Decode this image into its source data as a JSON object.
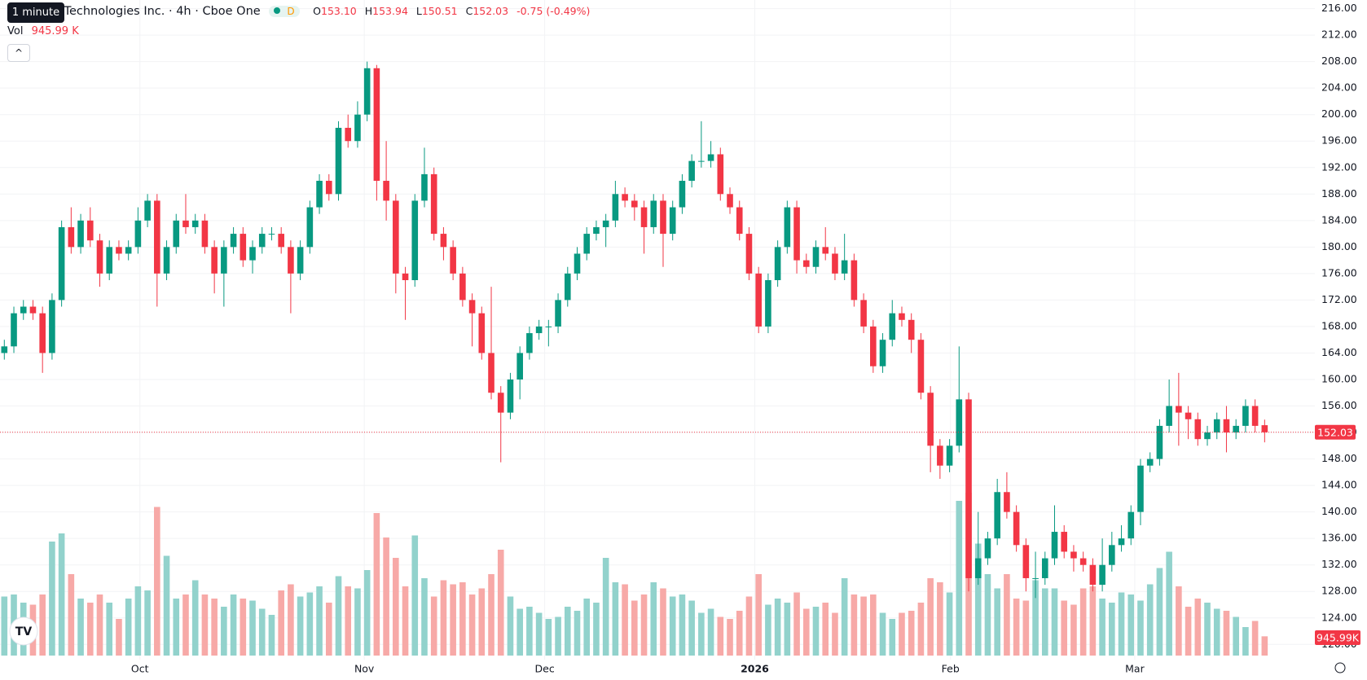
{
  "header": {
    "tooltip": "1 minute",
    "title": "r Technologies Inc. · 4h · Cboe One",
    "badge": "D",
    "o_label": "O",
    "open": "153.10",
    "h_label": "H",
    "high": "153.94",
    "l_label": "L",
    "low": "150.51",
    "c_label": "C",
    "close": "152.03",
    "change": "-0.75 (-0.49%)",
    "vol_label": "Vol",
    "volume": "945.99 K"
  },
  "chart_data": {
    "type": "candlestick",
    "open": [
      164,
      165,
      170,
      171,
      170,
      164,
      172,
      183,
      180,
      184,
      181,
      176,
      180,
      179,
      180,
      184,
      187,
      176,
      180,
      184,
      183,
      184,
      180,
      176,
      180,
      182,
      178,
      180,
      182,
      182,
      180,
      176,
      180,
      186,
      190,
      188,
      198,
      196,
      200,
      207,
      190,
      187,
      176,
      175,
      187,
      191,
      182,
      180,
      176,
      172,
      170,
      164,
      158,
      155,
      160,
      164,
      167,
      168,
      168,
      172,
      176,
      179,
      182,
      183,
      184,
      188,
      187,
      186,
      183,
      187,
      182,
      186,
      190,
      193,
      193,
      194,
      188,
      186,
      182,
      176,
      168,
      175,
      180,
      186,
      178,
      177,
      180,
      179,
      176,
      178,
      172,
      168,
      162,
      166,
      170,
      169,
      166,
      158,
      150,
      147,
      150,
      157,
      130,
      133,
      136,
      143,
      140,
      135,
      130,
      130,
      133,
      137,
      134,
      133,
      132,
      129,
      132,
      135,
      136,
      140,
      147,
      148,
      153,
      156,
      155,
      154,
      151,
      152,
      154,
      152,
      153,
      156,
      153.1
    ],
    "high": [
      166,
      171,
      172,
      172,
      171,
      173,
      184,
      186,
      185,
      186,
      182,
      181,
      181,
      181,
      186,
      188,
      188,
      181,
      185,
      188,
      185,
      185,
      181,
      181,
      183,
      183,
      181,
      183,
      183,
      183,
      181,
      181,
      187,
      191,
      191,
      199,
      200,
      202,
      208,
      207.5,
      196,
      188,
      177,
      188,
      195,
      192,
      183,
      181,
      177,
      173,
      171,
      174,
      159,
      161,
      165,
      168,
      169,
      169,
      173,
      177,
      180,
      183,
      184,
      185,
      190,
      189,
      188,
      187,
      188,
      188,
      187,
      191,
      194,
      199,
      196,
      195,
      189,
      187,
      183,
      177,
      176,
      181,
      187,
      187,
      179,
      181,
      183,
      180,
      182,
      179,
      173,
      169,
      167,
      172,
      171,
      170,
      167,
      159,
      151,
      151,
      165,
      158,
      140,
      137,
      145,
      146,
      141,
      136,
      134,
      134,
      141,
      138,
      135,
      134,
      133,
      136,
      137,
      138,
      141,
      148,
      149,
      154,
      160,
      161,
      156,
      155,
      153,
      155,
      156,
      154,
      157,
      157,
      153.94
    ],
    "low": [
      163,
      164,
      169,
      169,
      161,
      163,
      171,
      179,
      179,
      180,
      174,
      175,
      178,
      178,
      179,
      183,
      171,
      175,
      179,
      182,
      182,
      179,
      173,
      171,
      179,
      177,
      176,
      179,
      181,
      179,
      170,
      175,
      179,
      185,
      187,
      187,
      195,
      195,
      199,
      187,
      184,
      173,
      169,
      174,
      186,
      181,
      178,
      175,
      171,
      165,
      163,
      157,
      147.5,
      154,
      157,
      163,
      166,
      165,
      167,
      171,
      175,
      178,
      181,
      180,
      183,
      186,
      184,
      179,
      182,
      177,
      181,
      185,
      189,
      192,
      192,
      187,
      185,
      181,
      175,
      167,
      167,
      174,
      179,
      176,
      176,
      176,
      178,
      175,
      175,
      171,
      167,
      161,
      161,
      165,
      168,
      164,
      157,
      146,
      145,
      146,
      149,
      128,
      129,
      132,
      135,
      139,
      134,
      128,
      127,
      129,
      132,
      133,
      131,
      131,
      128,
      128,
      131,
      134,
      135,
      138,
      146,
      147,
      152,
      150,
      151,
      150,
      150,
      151,
      149,
      151,
      152,
      152,
      150.51
    ],
    "close": [
      165,
      170,
      171,
      170,
      164,
      172,
      183,
      180,
      184,
      181,
      176,
      180,
      179,
      180,
      184,
      187,
      176,
      180,
      184,
      183,
      184,
      180,
      176,
      180,
      182,
      178,
      180,
      182,
      182,
      180,
      176,
      180,
      186,
      190,
      188,
      198,
      196,
      200,
      207,
      190,
      187,
      176,
      175,
      187,
      191,
      182,
      180,
      176,
      172,
      170,
      164,
      158,
      155,
      160,
      164,
      167,
      168,
      168,
      172,
      176,
      179,
      182,
      183,
      184,
      188,
      187,
      186,
      183,
      187,
      182,
      186,
      190,
      193,
      193,
      194,
      188,
      186,
      182,
      176,
      168,
      175,
      180,
      186,
      178,
      177,
      180,
      179,
      176,
      178,
      172,
      168,
      162,
      166,
      170,
      169,
      166,
      158,
      150,
      147,
      150,
      157,
      130,
      133,
      136,
      143,
      140,
      135,
      130,
      130,
      133,
      137,
      134,
      133,
      132,
      129,
      132,
      135,
      136,
      140,
      147,
      148,
      153,
      156,
      155,
      154,
      151,
      152,
      154,
      152,
      153,
      156,
      153,
      152.03
    ],
    "volume": [
      2900,
      3000,
      2600,
      2500,
      3000,
      5600,
      6000,
      4000,
      2800,
      2600,
      3000,
      2600,
      1800,
      2800,
      3400,
      3200,
      7300,
      4900,
      2800,
      3000,
      3700,
      3000,
      2800,
      2400,
      3000,
      2800,
      2700,
      2300,
      2000,
      3200,
      3500,
      2900,
      3100,
      3400,
      2600,
      3900,
      3400,
      3300,
      4200,
      7000,
      5800,
      4800,
      3400,
      5900,
      3800,
      2900,
      3700,
      3500,
      3600,
      3000,
      3300,
      4000,
      5200,
      2900,
      2300,
      2400,
      2100,
      1800,
      1900,
      2400,
      2200,
      2800,
      2600,
      4800,
      3600,
      3500,
      2700,
      3000,
      3600,
      3300,
      2900,
      3000,
      2700,
      2100,
      2300,
      1900,
      1800,
      2200,
      2900,
      4000,
      2500,
      2800,
      2600,
      3100,
      2300,
      2400,
      2600,
      2100,
      3800,
      3000,
      2900,
      3000,
      2100,
      1800,
      2100,
      2200,
      2600,
      3800,
      3600,
      3100,
      7600,
      8000,
      5500,
      4000,
      3300,
      4000,
      2800,
      2700,
      3700,
      3300,
      3300,
      2700,
      2500,
      3300,
      3400,
      2800,
      2600,
      3100,
      3000,
      2700,
      3500,
      4300,
      5100,
      3400,
      2400,
      2800,
      2600,
      2300,
      2200,
      1900,
      1400,
      1700,
      945.99
    ],
    "volume_label": "945.99K",
    "ylim": [
      117.7,
      217.3
    ],
    "yticks": [
      {
        "value": 216,
        "label": "216.00"
      },
      {
        "value": 212,
        "label": "212.00"
      },
      {
        "value": 208,
        "label": "208.00"
      },
      {
        "value": 204,
        "label": "204.00"
      },
      {
        "value": 200,
        "label": "200.00"
      },
      {
        "value": 196,
        "label": "196.00"
      },
      {
        "value": 192,
        "label": "192.00"
      },
      {
        "value": 188,
        "label": "188.00"
      },
      {
        "value": 184,
        "label": "184.00"
      },
      {
        "value": 180,
        "label": "180.00"
      },
      {
        "value": 176,
        "label": "176.00"
      },
      {
        "value": 172,
        "label": "172.00"
      },
      {
        "value": 168,
        "label": "168.00"
      },
      {
        "value": 164,
        "label": "164.00"
      },
      {
        "value": 160,
        "label": "160.00"
      },
      {
        "value": 156,
        "label": "156.00"
      },
      {
        "value": 152,
        "label": "152.00"
      },
      {
        "value": 148,
        "label": "148.00"
      },
      {
        "value": 144,
        "label": "144.00"
      },
      {
        "value": 140,
        "label": "140.00"
      },
      {
        "value": 136,
        "label": "136.00"
      },
      {
        "value": 132,
        "label": "132.00"
      },
      {
        "value": 128,
        "label": "128.00"
      },
      {
        "value": 124,
        "label": "124.00"
      },
      {
        "value": 120,
        "label": "120.00"
      }
    ],
    "xticks": [
      {
        "value": 14.2,
        "label": "Oct"
      },
      {
        "value": 37.7,
        "label": "Nov"
      },
      {
        "value": 56.6,
        "label": "Dec"
      },
      {
        "value": 78.6,
        "label": "2026"
      },
      {
        "value": 99.1,
        "label": "Feb"
      },
      {
        "value": 118.4,
        "label": "Mar"
      }
    ],
    "up_color": "#089981",
    "down_color": "#f23645",
    "up_volume_color": "#92d2cc",
    "down_volume_color": "#f7a9a7",
    "grid": true
  }
}
